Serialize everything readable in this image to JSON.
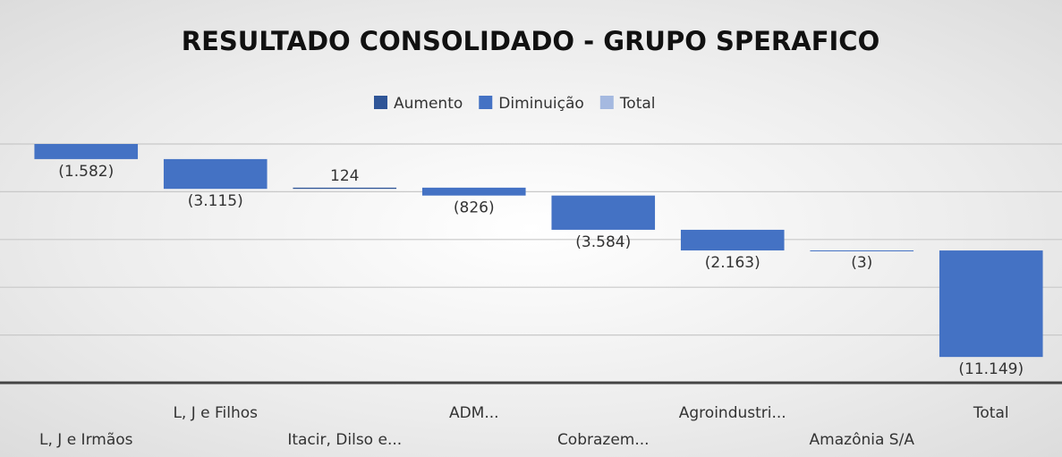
{
  "chart_data": {
    "type": "waterfall",
    "title": "RESULTADO CONSOLIDADO - GRUPO SPERAFICO",
    "categories": [
      "L, J e Irmãos",
      "L, J e Filhos",
      "Itacir, Dilso e...",
      "ADM...",
      "Cobrazem...",
      "Agroindustri...",
      "Amazônia S/A",
      "Total"
    ],
    "values": [
      -1582,
      -3115,
      124,
      -826,
      -3584,
      -2163,
      -3,
      -11149
    ],
    "value_labels": [
      "(1.582)",
      "(3.115)",
      "124",
      "(826)",
      "(3.584)",
      "(2.163)",
      "(3)",
      "(11.149)"
    ],
    "total_index": 7,
    "series": [
      {
        "name": "Aumento",
        "color": "#2f5597"
      },
      {
        "name": "Diminuição",
        "color": "#4472c4"
      },
      {
        "name": "Total",
        "color": "#a5b9e0"
      }
    ],
    "ylim": [
      -25000,
      0
    ],
    "yticks": [
      0,
      -5000,
      -10000,
      -15000,
      -20000,
      -25000
    ],
    "grid": true,
    "legend": "top"
  }
}
